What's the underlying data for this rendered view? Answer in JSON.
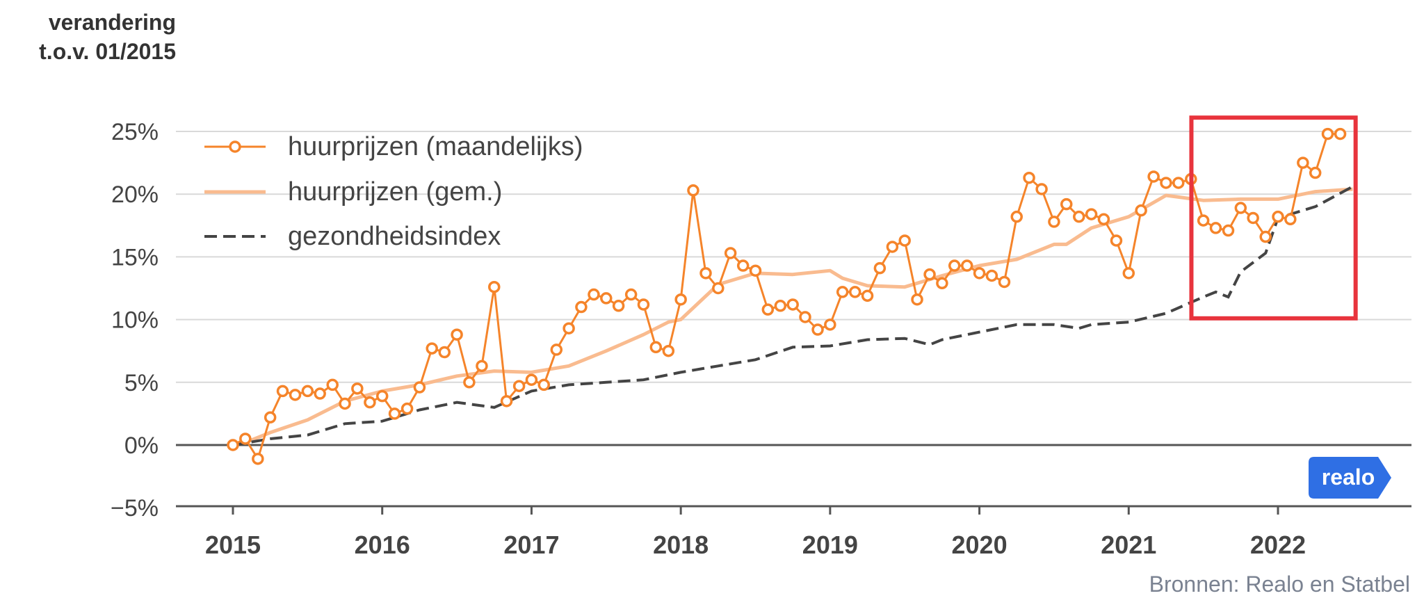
{
  "chart_data": {
    "type": "line",
    "ylabel": [
      "verandering",
      "t.o.v. 01/2015"
    ],
    "source": "Bronnen: Realo en Statbel",
    "logo_text": "realo",
    "ylim": [
      -5,
      25
    ],
    "yticks": [
      -5,
      0,
      5,
      10,
      15,
      20,
      25
    ],
    "ytick_labels": [
      "−5%",
      "0%",
      "5%",
      "10%",
      "15%",
      "20%",
      "25%"
    ],
    "xlim": [
      2015,
      2022.9
    ],
    "xticks": [
      2015,
      2016,
      2017,
      2018,
      2019,
      2020,
      2021,
      2022
    ],
    "xtick_labels": [
      "2015",
      "2016",
      "2017",
      "2018",
      "2019",
      "2020",
      "2021",
      "2022"
    ],
    "grid": true,
    "legend_position": "top-left",
    "highlight_box": {
      "x": [
        2021.42,
        2022.52
      ],
      "y": [
        10.1,
        26.1
      ],
      "color": "#e8343d"
    },
    "colors": {
      "monthly": "#f5842a",
      "avg": "#f9bb8f",
      "index": "#444444",
      "grid": "#d9d9d9",
      "axis": "#555555"
    },
    "series": [
      {
        "name": "huurprijzen (maandelijks)",
        "style": "line-markers",
        "x": [
          2015.0,
          2015.083,
          2015.167,
          2015.25,
          2015.333,
          2015.417,
          2015.5,
          2015.583,
          2015.667,
          2015.75,
          2015.833,
          2015.917,
          2016.0,
          2016.083,
          2016.167,
          2016.25,
          2016.333,
          2016.417,
          2016.5,
          2016.583,
          2016.667,
          2016.75,
          2016.833,
          2016.917,
          2017.0,
          2017.083,
          2017.167,
          2017.25,
          2017.333,
          2017.417,
          2017.5,
          2017.583,
          2017.667,
          2017.75,
          2017.833,
          2017.917,
          2018.0,
          2018.083,
          2018.167,
          2018.25,
          2018.333,
          2018.417,
          2018.5,
          2018.583,
          2018.667,
          2018.75,
          2018.833,
          2018.917,
          2019.0,
          2019.083,
          2019.167,
          2019.25,
          2019.333,
          2019.417,
          2019.5,
          2019.583,
          2019.667,
          2019.75,
          2019.833,
          2019.917,
          2020.0,
          2020.083,
          2020.167,
          2020.25,
          2020.333,
          2020.417,
          2020.5,
          2020.583,
          2020.667,
          2020.75,
          2020.833,
          2020.917,
          2021.0,
          2021.083,
          2021.167,
          2021.25,
          2021.333,
          2021.417,
          2021.5,
          2021.583,
          2021.667,
          2021.75,
          2021.833,
          2021.917,
          2022.0,
          2022.083,
          2022.167,
          2022.25,
          2022.333,
          2022.417
        ],
        "y": [
          0.0,
          0.5,
          -1.1,
          2.2,
          4.3,
          4.0,
          4.3,
          4.1,
          4.8,
          3.3,
          4.5,
          3.4,
          3.9,
          2.5,
          2.9,
          4.6,
          7.7,
          7.4,
          8.8,
          5.0,
          6.3,
          12.6,
          3.5,
          4.7,
          5.2,
          4.8,
          7.6,
          9.3,
          11.0,
          12.0,
          11.7,
          11.1,
          12.0,
          11.2,
          7.8,
          7.5,
          11.6,
          20.3,
          13.7,
          12.5,
          15.3,
          14.3,
          13.9,
          10.8,
          11.1,
          11.2,
          10.2,
          9.2,
          9.6,
          12.2,
          12.2,
          11.9,
          14.1,
          15.8,
          16.3,
          11.6,
          13.6,
          12.9,
          14.3,
          14.3,
          13.7,
          13.5,
          13.0,
          18.2,
          21.3,
          20.4,
          17.8,
          19.2,
          18.2,
          18.4,
          18.0,
          16.3,
          13.7,
          18.7,
          21.4,
          20.9,
          20.9,
          21.2,
          17.9,
          17.3,
          17.1,
          18.9,
          18.1,
          16.6,
          18.2,
          18.0,
          22.5,
          21.7,
          24.8,
          24.8
        ]
      },
      {
        "name": "huurprijzen (gem.)",
        "style": "line",
        "x": [
          2015.083,
          2015.25,
          2015.5,
          2015.75,
          2016.0,
          2016.25,
          2016.5,
          2016.75,
          2017.0,
          2017.25,
          2017.5,
          2017.75,
          2017.917,
          2018.0,
          2018.25,
          2018.5,
          2018.75,
          2019.0,
          2019.083,
          2019.25,
          2019.5,
          2019.75,
          2020.0,
          2020.25,
          2020.5,
          2020.583,
          2020.75,
          2021.0,
          2021.25,
          2021.5,
          2021.75,
          2022.0,
          2022.25,
          2022.5
        ],
        "y": [
          0.2,
          1.0,
          2.0,
          3.5,
          4.3,
          4.8,
          5.5,
          5.9,
          5.8,
          6.3,
          7.5,
          8.8,
          9.8,
          10.0,
          12.8,
          13.7,
          13.6,
          13.9,
          13.3,
          12.7,
          12.6,
          13.5,
          14.3,
          14.8,
          16.0,
          16.0,
          17.3,
          18.2,
          19.9,
          19.5,
          19.6,
          19.6,
          20.2,
          20.4
        ]
      },
      {
        "name": "gezondheidsindex",
        "style": "dashed",
        "x": [
          2015.0,
          2015.25,
          2015.5,
          2015.75,
          2016.0,
          2016.25,
          2016.5,
          2016.75,
          2017.0,
          2017.25,
          2017.5,
          2017.75,
          2018.0,
          2018.25,
          2018.5,
          2018.75,
          2019.0,
          2019.25,
          2019.5,
          2019.667,
          2019.75,
          2020.0,
          2020.25,
          2020.5,
          2020.667,
          2020.75,
          2021.0,
          2021.25,
          2021.5,
          2021.583,
          2021.667,
          2021.75,
          2021.917,
          2022.0,
          2022.25,
          2022.5
        ],
        "y": [
          0.0,
          0.5,
          0.8,
          1.7,
          1.9,
          2.8,
          3.4,
          3.0,
          4.3,
          4.8,
          5.0,
          5.2,
          5.8,
          6.3,
          6.8,
          7.8,
          7.9,
          8.4,
          8.5,
          8.0,
          8.4,
          9.0,
          9.6,
          9.6,
          9.3,
          9.6,
          9.8,
          10.5,
          11.8,
          12.2,
          11.8,
          13.8,
          15.3,
          18.1,
          19.0,
          20.6
        ]
      }
    ]
  }
}
